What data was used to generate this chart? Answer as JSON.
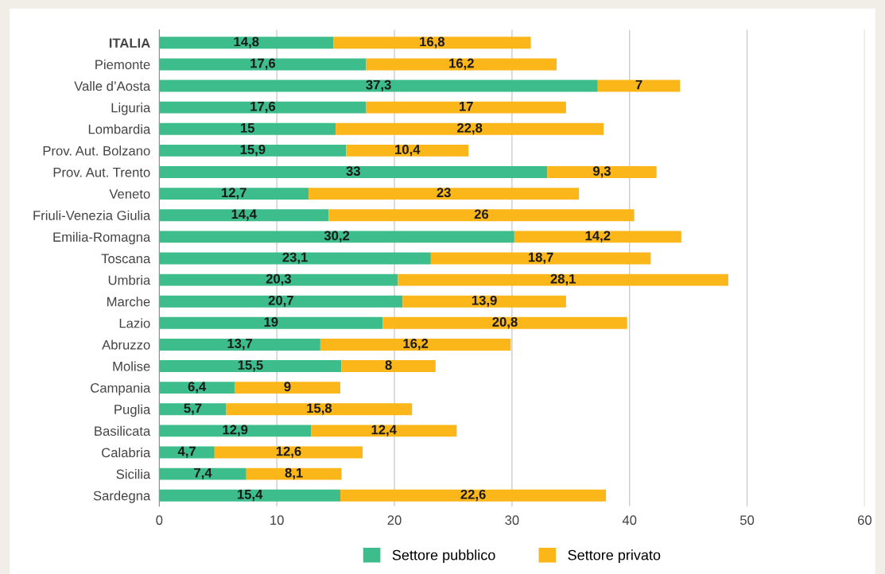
{
  "chart_data": {
    "type": "bar",
    "orientation": "horizontal",
    "stacked": true,
    "categories": [
      "ITALIA",
      "Piemonte",
      "Valle d’Aosta",
      "Liguria",
      "Lombardia",
      "Prov. Aut. Bolzano",
      "Prov. Aut. Trento",
      "Veneto",
      "Friuli-Venezia Giulia",
      "Emilia-Romagna",
      "Toscana",
      "Umbria",
      "Marche",
      "Lazio",
      "Abruzzo",
      "Molise",
      "Campania",
      "Puglia",
      "Basilicata",
      "Calabria",
      "Sicilia",
      "Sardegna"
    ],
    "series": [
      {
        "name": "Settore pubblico",
        "color": "#3dbd8c",
        "values": [
          14.8,
          17.6,
          37.3,
          17.6,
          15,
          15.9,
          33,
          12.7,
          14.4,
          30.2,
          23.1,
          20.3,
          20.7,
          19,
          13.7,
          15.5,
          6.4,
          5.7,
          12.9,
          4.7,
          7.4,
          15.4
        ],
        "value_labels": [
          "14,8",
          "17,6",
          "37,3",
          "17,6",
          "15",
          "15,9",
          "33",
          "12,7",
          "14,4",
          "30,2",
          "23,1",
          "20,3",
          "20,7",
          "19",
          "13,7",
          "15,5",
          "6,4",
          "5,7",
          "12,9",
          "4,7",
          "7,4",
          "15,4"
        ]
      },
      {
        "name": "Settore privato",
        "color": "#fbb619",
        "values": [
          16.8,
          16.2,
          7,
          17,
          22.8,
          10.4,
          9.3,
          23,
          26,
          14.2,
          18.7,
          28.1,
          13.9,
          20.8,
          16.2,
          8,
          9,
          15.8,
          12.4,
          12.6,
          8.1,
          22.6
        ],
        "value_labels": [
          "16,8",
          "16,2",
          "7",
          "17",
          "22,8",
          "10,4",
          "9,3",
          "23",
          "26",
          "14,2",
          "18,7",
          "28,1",
          "13,9",
          "20,8",
          "16,2",
          "8",
          "9",
          "15,8",
          "12,4",
          "12,6",
          "8,1",
          "22,6"
        ]
      }
    ],
    "xlim": [
      0,
      60
    ],
    "xticks": [
      0,
      10,
      20,
      30,
      40,
      50,
      60
    ],
    "grid": "x",
    "legend": "bottom"
  }
}
